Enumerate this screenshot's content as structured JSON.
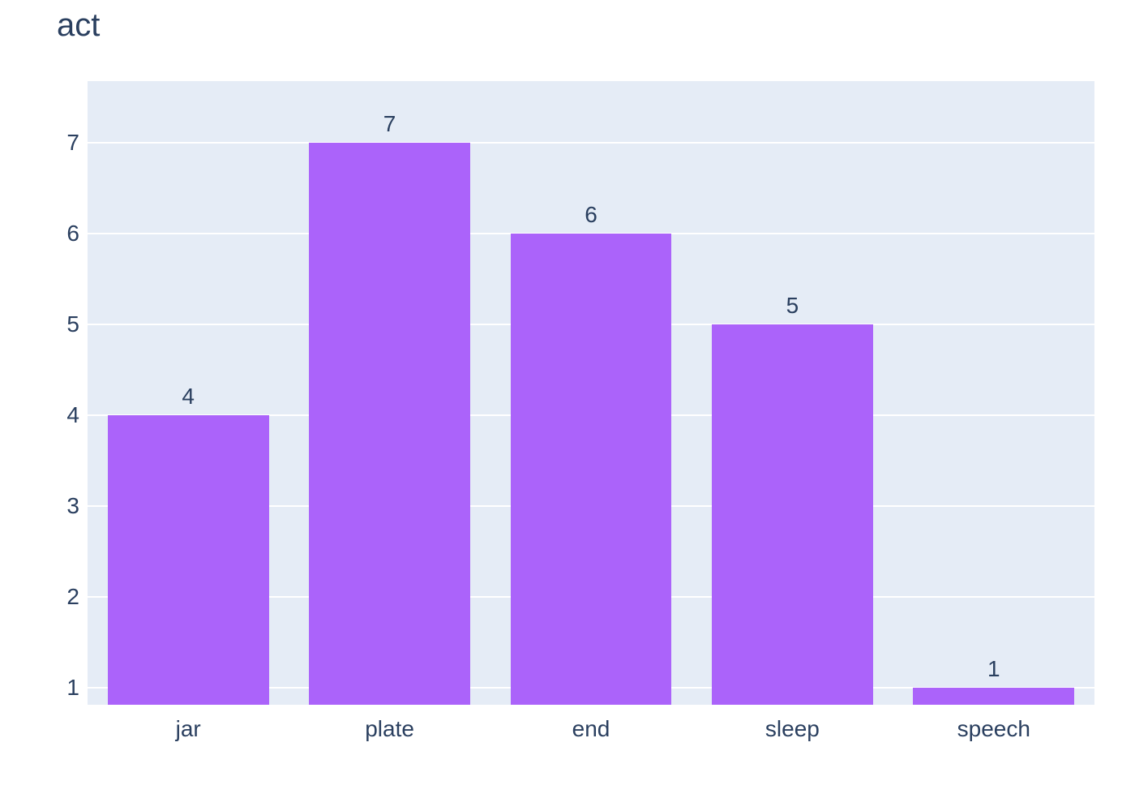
{
  "chart_data": {
    "type": "bar",
    "title": "act",
    "categories": [
      "jar",
      "plate",
      "end",
      "sleep",
      "speech"
    ],
    "values": [
      4,
      7,
      6,
      5,
      1
    ],
    "value_labels": [
      "4",
      "7",
      "6",
      "5",
      "1"
    ],
    "ytick_labels": [
      "1",
      "2",
      "3",
      "4",
      "5",
      "6",
      "7"
    ],
    "yticks": [
      1,
      2,
      3,
      4,
      5,
      6,
      7
    ],
    "ylim": [
      0.81,
      7.68
    ],
    "xlabel": "",
    "ylabel": "",
    "grid": true,
    "legend_position": "none",
    "colors": {
      "bar": "#ab63fa",
      "plot_background": "#e5ecf6",
      "gridline": "#ffffff",
      "text": "#2a3f5f",
      "page_background": "#ffffff"
    }
  }
}
